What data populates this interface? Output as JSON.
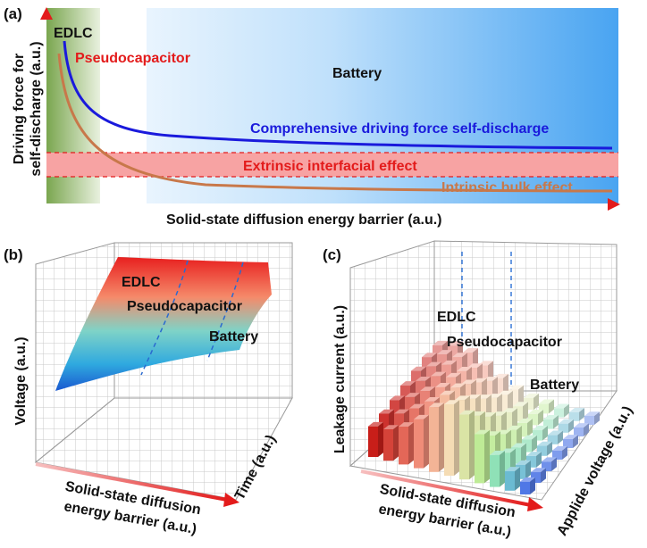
{
  "panel_a": {
    "tag": "(a)",
    "y_label_line1": "Driving force for",
    "y_label_line2": "self-discharge (a.u.)",
    "x_label": "Solid-state diffusion energy barrier (a.u.)",
    "region_edlc": "EDLC",
    "region_pseudo": "Pseudocapacitor",
    "region_battery": "Battery",
    "curve_comprehensive": "Comprehensive driving force self-discharge",
    "band_extrinsic": "Extrinsic interfacial effect",
    "curve_intrinsic": "Intrinsic bulk effect",
    "colors": {
      "comprehensive": "#1a1adc",
      "intrinsic": "#c8784a",
      "extrinsic_band": "#f7a3a3",
      "pseudo_text": "#e31b1b"
    }
  },
  "panel_b": {
    "tag": "(b)",
    "y_label": "Voltage (a.u.)",
    "depth_label": "Time (a.u.)",
    "x_label_line1": "Solid-state diffusion",
    "x_label_line2": "energy barrier (a.u.)",
    "edlc": "EDLC",
    "pseudo": "Pseudocapacitor",
    "battery": "Battery"
  },
  "panel_c": {
    "tag": "(c)",
    "y_label": "Leakage current (a.u.)",
    "depth_label": "Applide voltage (a.u.)",
    "x_label_line1": "Solid-state diffusion",
    "x_label_line2": "energy barrier (a.u.)",
    "edlc": "EDLC",
    "pseudo": "Pseudocapacitor",
    "battery": "Battery"
  }
}
